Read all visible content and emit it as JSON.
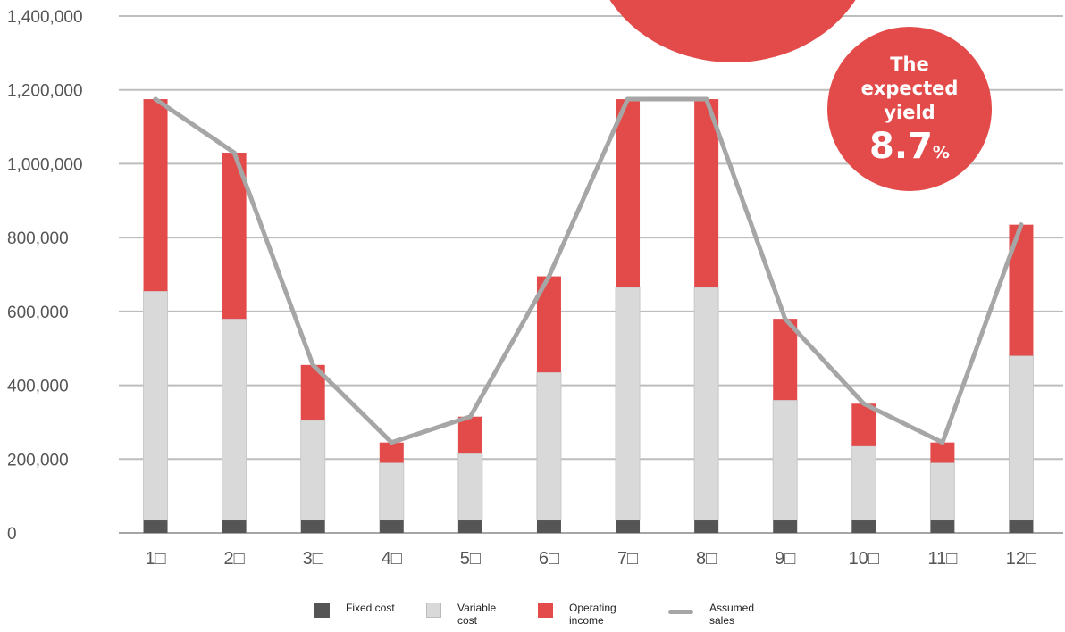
{
  "chart_data": {
    "type": "bar",
    "stacked": true,
    "categories": [
      "1□",
      "2□",
      "3□",
      "4□",
      "5□",
      "6□",
      "7□",
      "8□",
      "9□",
      "10□",
      "11□",
      "12□"
    ],
    "series": [
      {
        "name": "Fixed cost",
        "type": "bar",
        "color": "#555555",
        "values": [
          35000,
          35000,
          35000,
          35000,
          35000,
          35000,
          35000,
          35000,
          35000,
          35000,
          35000,
          35000
        ]
      },
      {
        "name": "Variable\ncost",
        "type": "bar",
        "color": "#d9d9d9",
        "values": [
          620000,
          545000,
          270000,
          155000,
          180000,
          400000,
          630000,
          630000,
          325000,
          200000,
          155000,
          445000
        ]
      },
      {
        "name": "Operating\nincome",
        "type": "bar",
        "color": "#e34a4a",
        "values": [
          520000,
          450000,
          150000,
          55000,
          100000,
          260000,
          510000,
          510000,
          220000,
          115000,
          55000,
          355000
        ]
      },
      {
        "name": "Assumed\nsales",
        "type": "line",
        "color": "#a6a6a6",
        "values": [
          1175000,
          1030000,
          455000,
          245000,
          315000,
          695000,
          1175000,
          1175000,
          580000,
          350000,
          245000,
          835000
        ]
      }
    ],
    "yticks": [
      "0",
      "200,000",
      "400,000",
      "600,000",
      "800,000",
      "1,000,000",
      "1,200,000",
      "1,400,000"
    ],
    "ylim": [
      0,
      1400000
    ],
    "grid": true,
    "legend_position": "bottom",
    "xlabel": "",
    "ylabel": ""
  },
  "badge": {
    "title": "The expected yield",
    "value": "8.7",
    "unit": "%",
    "color": "#e34a4a"
  }
}
